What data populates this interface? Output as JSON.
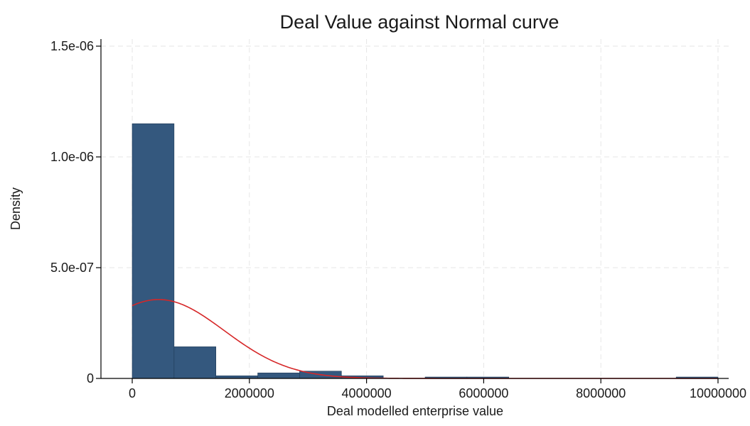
{
  "chart_data": {
    "type": "bar",
    "title": "Deal Value against Normal curve",
    "xlabel": "Deal modelled enterprise value",
    "ylabel": "Density",
    "xlim": [
      0,
      10000000
    ],
    "ylim": [
      0,
      1.5e-06
    ],
    "grid": true,
    "x_ticks": [
      {
        "value": 0,
        "label": "0"
      },
      {
        "value": 2000000,
        "label": "2000000"
      },
      {
        "value": 4000000,
        "label": "4000000"
      },
      {
        "value": 6000000,
        "label": "6000000"
      },
      {
        "value": 8000000,
        "label": "8000000"
      },
      {
        "value": 10000000,
        "label": "10000000"
      }
    ],
    "y_ticks": [
      {
        "value": 0,
        "label": "0"
      },
      {
        "value": 5e-07,
        "label": "5.0e-07"
      },
      {
        "value": 1e-06,
        "label": "1.0e-06"
      },
      {
        "value": 1.5e-06,
        "label": "1.5e-06"
      }
    ],
    "histogram": {
      "color": "#34587e",
      "bins": [
        {
          "x0": 0,
          "x1": 714286,
          "density": 1.15e-06
        },
        {
          "x0": 714286,
          "x1": 1428571,
          "density": 1.43e-07
        },
        {
          "x0": 1428571,
          "x1": 2142857,
          "density": 1.2e-08
        },
        {
          "x0": 2142857,
          "x1": 2857143,
          "density": 2.5e-08
        },
        {
          "x0": 2857143,
          "x1": 3571429,
          "density": 3.3e-08
        },
        {
          "x0": 3571429,
          "x1": 4285714,
          "density": 1.2e-08
        },
        {
          "x0": 4285714,
          "x1": 5000000,
          "density": 0
        },
        {
          "x0": 5000000,
          "x1": 5714286,
          "density": 4e-09
        },
        {
          "x0": 5714286,
          "x1": 6428571,
          "density": 4e-09
        },
        {
          "x0": 6428571,
          "x1": 7142857,
          "density": 0
        },
        {
          "x0": 7142857,
          "x1": 7857143,
          "density": 0
        },
        {
          "x0": 7857143,
          "x1": 8571429,
          "density": 0
        },
        {
          "x0": 8571429,
          "x1": 9285714,
          "density": 0
        },
        {
          "x0": 9285714,
          "x1": 10000000,
          "density": 4e-09
        }
      ]
    },
    "normal_curve": {
      "color": "#d62728",
      "mean": 450000,
      "sd": 1120000,
      "x_range": [
        0,
        10000000
      ]
    }
  }
}
